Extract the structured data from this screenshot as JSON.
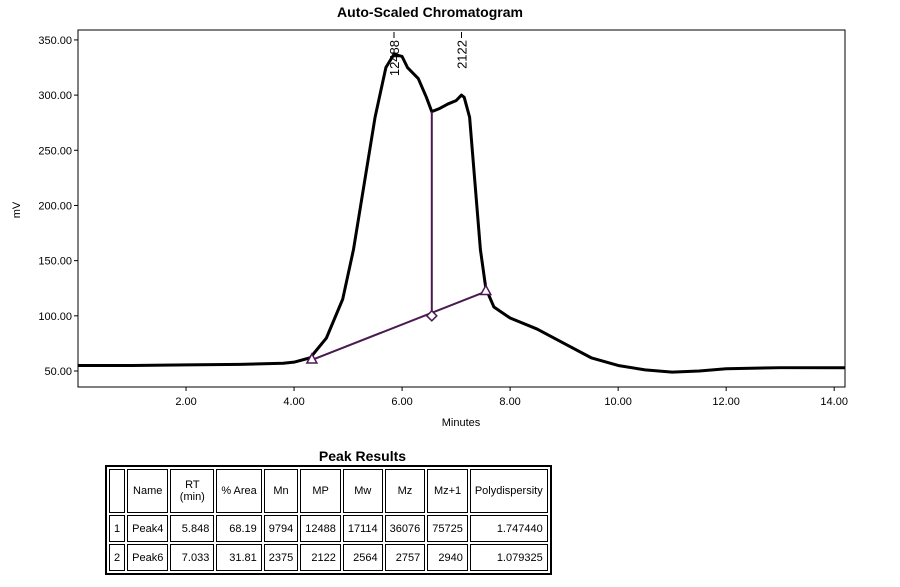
{
  "chart_data": {
    "type": "line",
    "title": "Auto-Scaled Chromatogram",
    "x_label": "Minutes",
    "y_label": "mV",
    "color": "#000000",
    "x": [
      0,
      1,
      2,
      3,
      3.8,
      4.0,
      4.3,
      4.6,
      4.9,
      5.1,
      5.3,
      5.5,
      5.7,
      5.85,
      6.0,
      6.1,
      6.3,
      6.45,
      6.55,
      6.7,
      6.85,
      7.0,
      7.1,
      7.15,
      7.25,
      7.35,
      7.45,
      7.55,
      7.7,
      8.0,
      8.5,
      9.0,
      9.5,
      10.0,
      10.5,
      11.0,
      11.5,
      12.0,
      13.0,
      14.2
    ],
    "values": [
      55,
      55,
      55.5,
      56,
      57,
      58,
      62,
      80,
      115,
      160,
      220,
      280,
      325,
      337,
      335,
      325,
      315,
      298,
      285,
      288,
      292,
      295,
      300,
      298,
      280,
      220,
      160,
      125,
      108,
      98,
      88,
      75,
      62,
      55,
      51,
      49,
      50,
      52,
      53,
      53
    ],
    "xlim": [
      0,
      14.2
    ],
    "ylim": [
      35.5,
      359
    ],
    "xticks": [
      {
        "value": 2,
        "label": "2.00"
      },
      {
        "value": 4,
        "label": "4.00"
      },
      {
        "value": 6,
        "label": "6.00"
      },
      {
        "value": 8,
        "label": "8.00"
      },
      {
        "value": 10,
        "label": "10.00"
      },
      {
        "value": 12,
        "label": "12.00"
      },
      {
        "value": 14,
        "label": "14.00"
      }
    ],
    "yticks": [
      {
        "value": 50,
        "label": "50.00"
      },
      {
        "value": 100,
        "label": "100.00"
      },
      {
        "value": 150,
        "label": "150.00"
      },
      {
        "value": 200,
        "label": "200.00"
      },
      {
        "value": 250,
        "label": "250.00"
      },
      {
        "value": 300,
        "label": "300.00"
      },
      {
        "value": 350,
        "label": "350.00"
      }
    ],
    "baseline": {
      "color": "#4b1a52",
      "x": [
        4.33,
        7.55
      ],
      "y": [
        60,
        122
      ]
    },
    "drop_line": {
      "x": 6.55,
      "y": [
        100,
        285
      ]
    },
    "annotations": [
      {
        "x": 5.85,
        "y": 337,
        "text": "12488"
      },
      {
        "x": 7.1,
        "y": 300,
        "text": "2122"
      }
    ]
  },
  "table": {
    "title": "Peak Results",
    "header": [
      "Name",
      "RT (min)",
      "% Area",
      "Mn",
      "MP",
      "Mw",
      "Mz",
      "Mz+1",
      "Polydispersity"
    ],
    "rows": [
      [
        "1",
        "Peak4",
        "5.848",
        "68.19",
        "9794",
        "12488",
        "17114",
        "36076",
        "75725",
        "1.747440"
      ],
      [
        "2",
        "Peak6",
        "7.033",
        "31.81",
        "2375",
        "2122",
        "2564",
        "2757",
        "2940",
        "1.079325"
      ]
    ]
  }
}
